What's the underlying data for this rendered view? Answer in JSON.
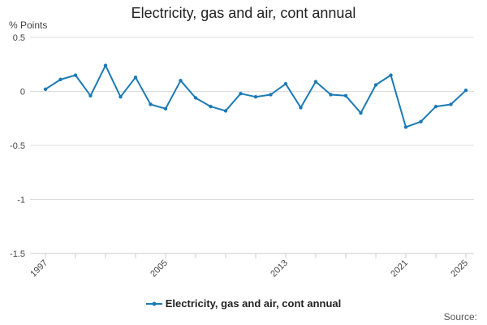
{
  "title": "Electricity, gas and air, cont annual",
  "y_unit": "% Points",
  "source_label": "Source:",
  "colors": {
    "series": "#1a7ab6",
    "grid": "#dddddd",
    "axis": "#cccccc"
  },
  "chart_data": {
    "type": "line",
    "title": "Electricity, gas and air, cont annual",
    "ylabel": "% Points",
    "xlabel": "",
    "ylim": [
      -1.5,
      0.5
    ],
    "yticks": [
      0.5,
      0,
      -0.5,
      -1,
      -1.5
    ],
    "ytick_labels": [
      "0.5",
      "0",
      "-0.5",
      "-1",
      "-1.5"
    ],
    "xlim": [
      1997,
      2025
    ],
    "xtick_labels": [
      "1997",
      "2005",
      "2013",
      "2021",
      "2025"
    ],
    "grid": true,
    "legend": "bottom-center",
    "series": [
      {
        "name": "Electricity, gas and air, cont annual",
        "x": [
          1997,
          1998,
          1999,
          2000,
          2001,
          2002,
          2003,
          2004,
          2005,
          2006,
          2007,
          2008,
          2009,
          2010,
          2011,
          2012,
          2013,
          2014,
          2015,
          2016,
          2017,
          2018,
          2019,
          2020,
          2021,
          2022,
          2023,
          2024,
          2025
        ],
        "values": [
          0.02,
          0.11,
          0.15,
          -0.04,
          0.24,
          -0.05,
          0.13,
          -0.12,
          -0.16,
          0.1,
          -0.06,
          -0.14,
          -0.18,
          -0.02,
          -0.05,
          -0.03,
          0.07,
          -0.15,
          0.09,
          -0.03,
          -0.04,
          -0.2,
          0.06,
          0.15,
          -0.33,
          -0.28,
          -0.14,
          -0.12,
          0.01
        ]
      }
    ]
  }
}
